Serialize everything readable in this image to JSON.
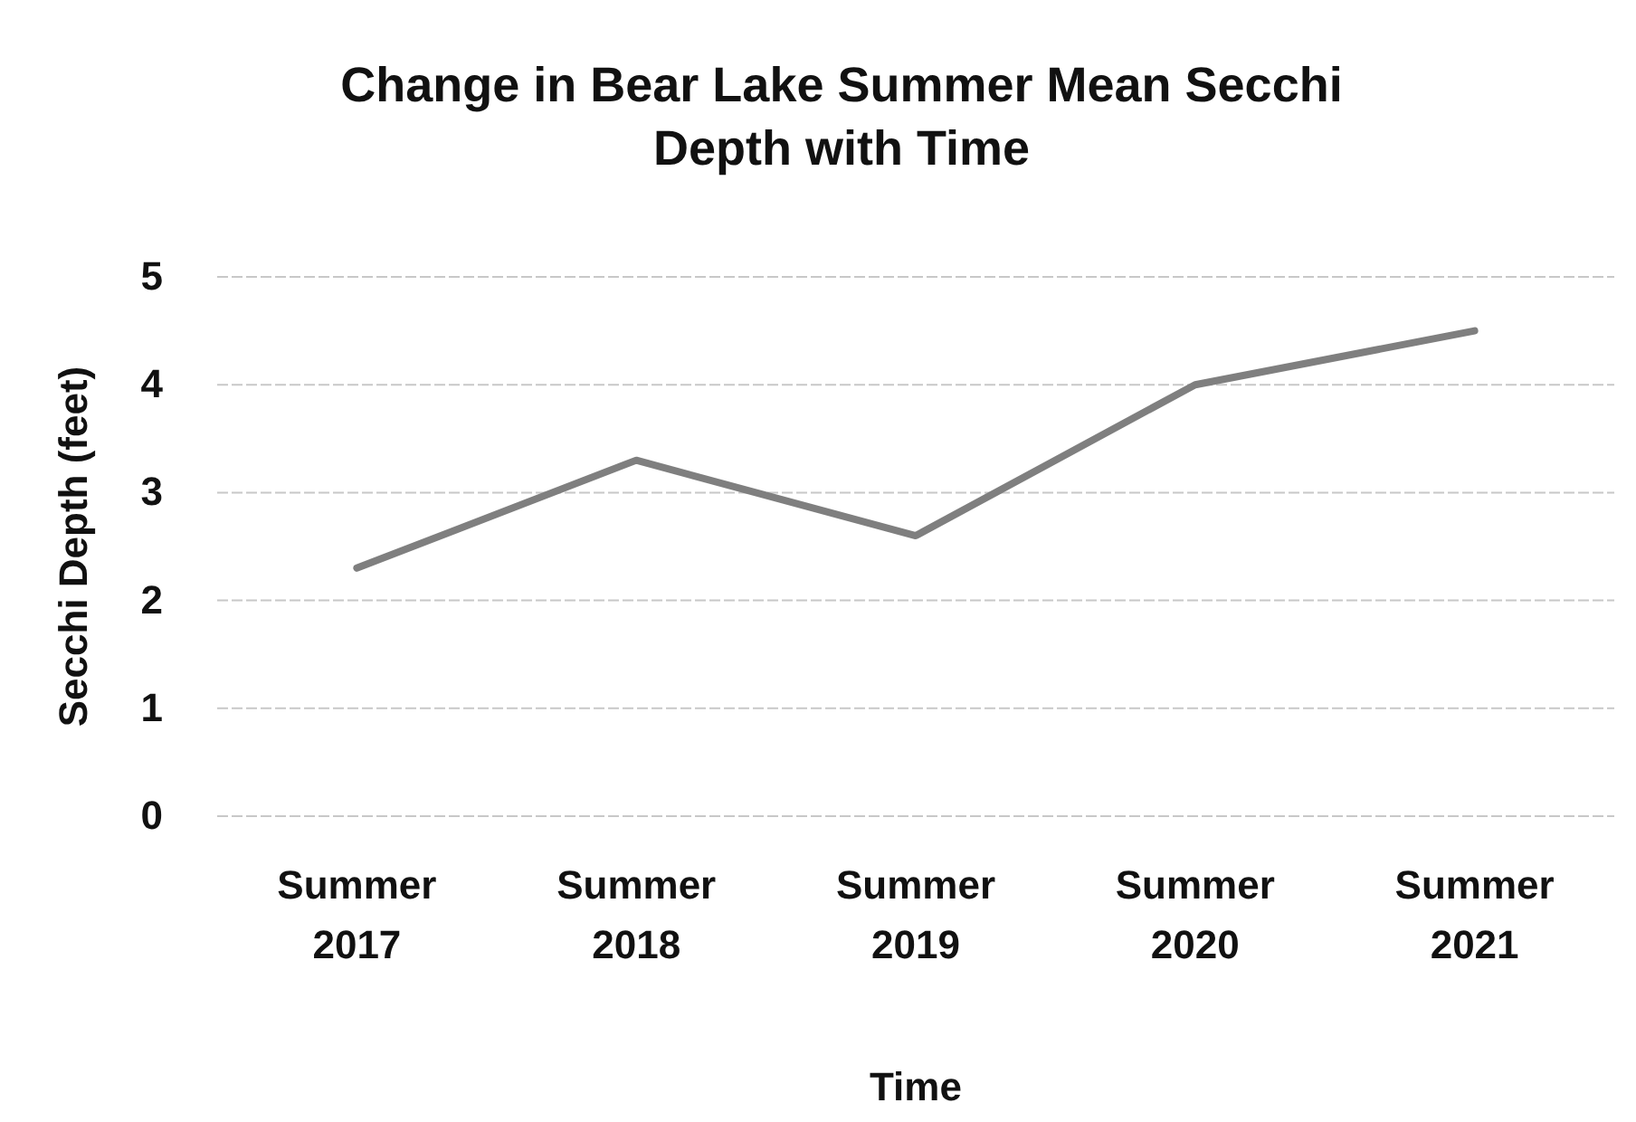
{
  "chart_data": {
    "type": "line",
    "title": "Change in Bear Lake Summer Mean Secchi Depth with Time",
    "xlabel": "Time",
    "ylabel": "Secchi Depth (feet)",
    "categories": [
      "Summer 2017",
      "Summer 2018",
      "Summer 2019",
      "Summer 2020",
      "Summer 2021"
    ],
    "series": [
      {
        "color": "#7f7f7f",
        "values": [
          2.3,
          3.3,
          2.6,
          4.0,
          4.5
        ]
      }
    ],
    "ylim": [
      0,
      5
    ],
    "yticks": [
      0,
      1,
      2,
      3,
      4,
      5
    ],
    "grid": "y",
    "marker": "none",
    "line_style": "solid"
  }
}
